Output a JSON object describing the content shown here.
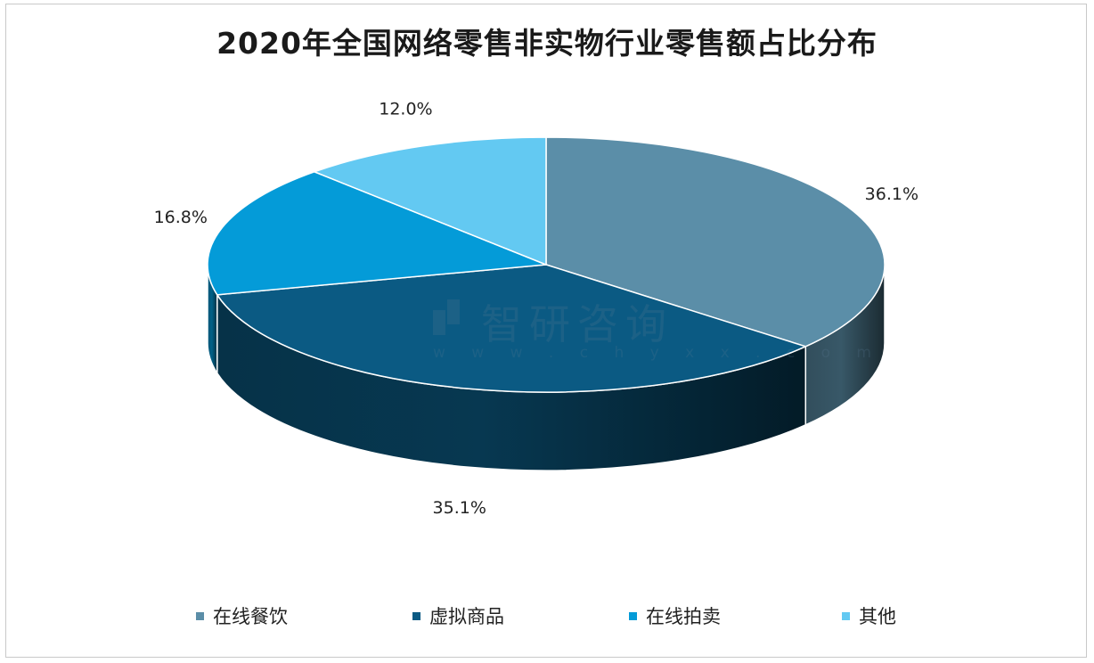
{
  "chart_data": {
    "type": "pie",
    "style": "3d",
    "title": "2020年全国网络零售非实物行业零售额占比分布",
    "categories": [
      "在线餐饮",
      "虚拟商品",
      "在线拍卖",
      "其他"
    ],
    "values": [
      36.1,
      35.1,
      16.8,
      12.0
    ],
    "labels": [
      "36.1%",
      "35.1%",
      "16.8%",
      "12.0%"
    ],
    "colors": [
      "#5b8ea8",
      "#0b5a83",
      "#049bd8",
      "#63c9f2"
    ],
    "legend_position": "bottom"
  },
  "watermark": {
    "text": "智研咨询",
    "url": "w w w . c h y x x . c o m"
  }
}
